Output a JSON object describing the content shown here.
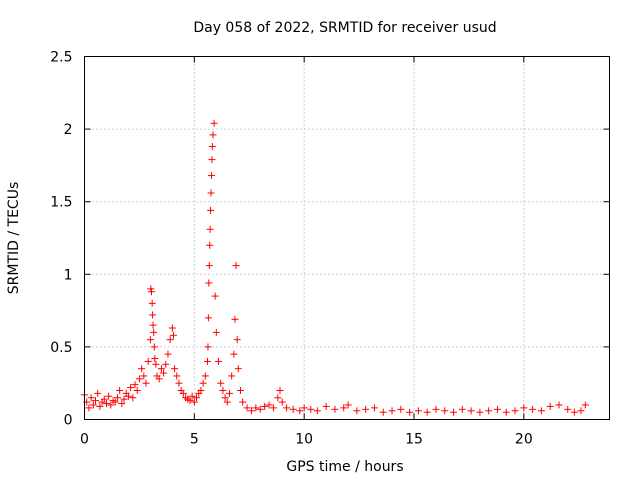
{
  "chart_data": {
    "type": "scatter",
    "title": "Day 058 of 2022, SRMTID for receiver usud",
    "xlabel": "GPS time / hours",
    "ylabel": "SRMTID / TECUs",
    "xlim": [
      0,
      23.9
    ],
    "ylim": [
      0,
      2.5
    ],
    "x_ticks": [
      0,
      5,
      10,
      15,
      20
    ],
    "x_tick_labels": [
      "0",
      "5",
      "10",
      "15",
      "20"
    ],
    "y_ticks": [
      0,
      0.5,
      1,
      1.5,
      2,
      2.5
    ],
    "y_tick_labels": [
      "0",
      "0.5",
      "1",
      "1.5",
      "2",
      "2.5"
    ],
    "grid": true,
    "marker": "+",
    "marker_color": "#ff0000",
    "series": [
      {
        "name": "SRMTID",
        "x": [
          0.0,
          0.1,
          0.2,
          0.3,
          0.4,
          0.5,
          0.6,
          0.7,
          0.8,
          0.9,
          1.0,
          1.1,
          1.2,
          1.3,
          1.4,
          1.5,
          1.6,
          1.7,
          1.8,
          1.9,
          2.0,
          2.1,
          2.2,
          2.3,
          2.4,
          2.5,
          2.6,
          2.7,
          2.8,
          2.9,
          3.0,
          3.02,
          3.05,
          3.08,
          3.1,
          3.12,
          3.15,
          3.18,
          3.2,
          3.25,
          3.3,
          3.4,
          3.5,
          3.6,
          3.7,
          3.8,
          3.9,
          4.0,
          4.05,
          4.1,
          4.2,
          4.3,
          4.4,
          4.5,
          4.6,
          4.7,
          4.8,
          4.9,
          5.0,
          5.1,
          5.2,
          5.3,
          5.4,
          5.5,
          5.6,
          5.62,
          5.64,
          5.66,
          5.68,
          5.7,
          5.72,
          5.74,
          5.76,
          5.78,
          5.8,
          5.82,
          5.85,
          5.9,
          5.95,
          6.0,
          6.1,
          6.2,
          6.3,
          6.4,
          6.5,
          6.6,
          6.7,
          6.8,
          6.85,
          6.9,
          6.95,
          7.0,
          7.1,
          7.2,
          7.4,
          7.6,
          7.8,
          8.0,
          8.2,
          8.4,
          8.6,
          8.8,
          8.9,
          9.0,
          9.2,
          9.5,
          9.8,
          10.0,
          10.3,
          10.6,
          11.0,
          11.4,
          11.8,
          12.0,
          12.4,
          12.8,
          13.2,
          13.6,
          14.0,
          14.4,
          14.8,
          15.2,
          15.6,
          16.0,
          16.4,
          16.8,
          17.2,
          17.6,
          18.0,
          18.4,
          18.8,
          19.2,
          19.6,
          20.0,
          20.4,
          20.8,
          21.2,
          21.6,
          22.0,
          22.3,
          22.6,
          22.8
        ],
        "y": [
          0.17,
          0.12,
          0.08,
          0.15,
          0.1,
          0.13,
          0.18,
          0.09,
          0.12,
          0.14,
          0.11,
          0.16,
          0.1,
          0.13,
          0.12,
          0.15,
          0.2,
          0.11,
          0.14,
          0.18,
          0.16,
          0.22,
          0.15,
          0.24,
          0.2,
          0.28,
          0.35,
          0.3,
          0.25,
          0.4,
          0.55,
          0.9,
          0.88,
          0.8,
          0.72,
          0.65,
          0.6,
          0.5,
          0.42,
          0.38,
          0.3,
          0.28,
          0.35,
          0.32,
          0.38,
          0.45,
          0.55,
          0.63,
          0.58,
          0.35,
          0.3,
          0.25,
          0.2,
          0.18,
          0.15,
          0.14,
          0.13,
          0.16,
          0.12,
          0.15,
          0.18,
          0.2,
          0.25,
          0.3,
          0.4,
          0.5,
          0.7,
          0.94,
          1.06,
          1.2,
          1.31,
          1.44,
          1.56,
          1.68,
          1.79,
          1.88,
          1.96,
          2.04,
          0.85,
          0.6,
          0.4,
          0.25,
          0.2,
          0.15,
          0.12,
          0.18,
          0.3,
          0.45,
          0.69,
          1.06,
          0.55,
          0.35,
          0.2,
          0.12,
          0.08,
          0.06,
          0.08,
          0.07,
          0.09,
          0.1,
          0.08,
          0.15,
          0.2,
          0.12,
          0.08,
          0.07,
          0.06,
          0.08,
          0.07,
          0.06,
          0.09,
          0.07,
          0.08,
          0.1,
          0.06,
          0.07,
          0.08,
          0.05,
          0.06,
          0.07,
          0.05,
          0.06,
          0.05,
          0.07,
          0.06,
          0.05,
          0.07,
          0.06,
          0.05,
          0.06,
          0.07,
          0.05,
          0.06,
          0.08,
          0.07,
          0.06,
          0.09,
          0.1,
          0.07,
          0.05,
          0.06,
          0.1
        ]
      }
    ]
  }
}
